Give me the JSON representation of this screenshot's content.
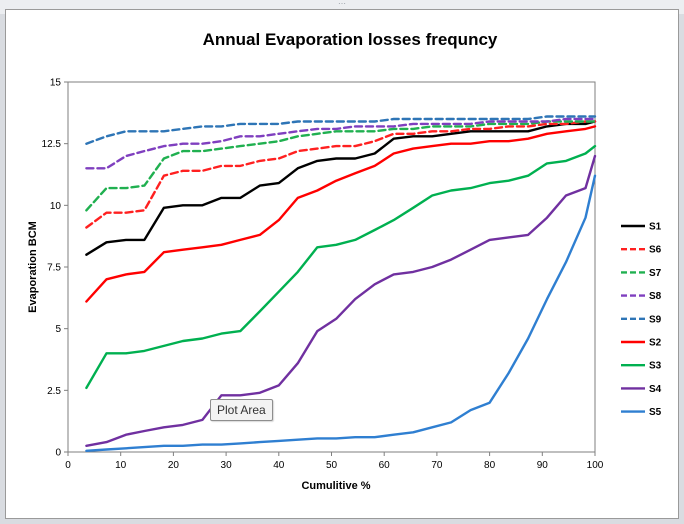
{
  "chart_data": {
    "type": "line",
    "title": "Annual Evaporation losses frequncy",
    "xlabel": "Cumulitive %",
    "ylabel": "Evaporation  BCM",
    "xlim": [
      0,
      100
    ],
    "ylim": [
      0,
      15
    ],
    "x_ticks": [
      "0",
      "10",
      "20",
      "30",
      "40",
      "50",
      "60",
      "70",
      "80",
      "90",
      "100"
    ],
    "y_ticks": [
      "0",
      "2.5",
      "5",
      "7.5",
      "10",
      "12.5",
      "15"
    ],
    "grid": false,
    "legend_position": "right",
    "series": [
      {
        "name": "S1",
        "color": "#000000",
        "dash": false,
        "x": [
          3.5,
          7.3,
          11,
          14.5,
          18.2,
          21.8,
          25.5,
          29.1,
          32.7,
          36.4,
          40,
          43.6,
          47.3,
          50.9,
          54.5,
          58.2,
          61.8,
          65.5,
          69.1,
          72.7,
          76.4,
          80,
          83.6,
          87.3,
          90.9,
          94.5,
          98.2,
          100
        ],
        "y": [
          8.0,
          8.5,
          8.6,
          8.6,
          9.9,
          10.0,
          10.0,
          10.3,
          10.3,
          10.8,
          10.9,
          11.5,
          11.8,
          11.9,
          11.9,
          12.1,
          12.7,
          12.8,
          12.8,
          12.9,
          13.0,
          13.0,
          13.0,
          13.0,
          13.2,
          13.3,
          13.3,
          13.4
        ]
      },
      {
        "name": "S6",
        "color": "#ff2020",
        "dash": true,
        "x": [
          3.5,
          7.3,
          11,
          14.5,
          18.2,
          21.8,
          25.5,
          29.1,
          32.7,
          36.4,
          40,
          43.6,
          47.3,
          50.9,
          54.5,
          58.2,
          61.8,
          65.5,
          69.1,
          72.7,
          76.4,
          80,
          83.6,
          87.3,
          90.9,
          94.5,
          98.2,
          100
        ],
        "y": [
          9.1,
          9.7,
          9.7,
          9.8,
          11.2,
          11.4,
          11.4,
          11.6,
          11.6,
          11.8,
          11.9,
          12.2,
          12.3,
          12.4,
          12.4,
          12.6,
          12.9,
          12.9,
          13.0,
          13.0,
          13.1,
          13.1,
          13.2,
          13.2,
          13.3,
          13.3,
          13.4,
          13.4
        ]
      },
      {
        "name": "S7",
        "color": "#20b050",
        "dash": true,
        "x": [
          3.5,
          7.3,
          11,
          14.5,
          18.2,
          21.8,
          25.5,
          29.1,
          32.7,
          36.4,
          40,
          43.6,
          47.3,
          50.9,
          54.5,
          58.2,
          61.8,
          65.5,
          69.1,
          72.7,
          76.4,
          80,
          83.6,
          87.3,
          90.9,
          94.5,
          98.2,
          100
        ],
        "y": [
          9.8,
          10.7,
          10.7,
          10.8,
          11.9,
          12.2,
          12.2,
          12.3,
          12.4,
          12.5,
          12.6,
          12.8,
          12.9,
          13.0,
          13.0,
          13.0,
          13.1,
          13.1,
          13.2,
          13.2,
          13.2,
          13.3,
          13.3,
          13.3,
          13.4,
          13.4,
          13.4,
          13.4
        ]
      },
      {
        "name": "S8",
        "color": "#7f3fbf",
        "dash": true,
        "x": [
          3.5,
          7.3,
          11,
          14.5,
          18.2,
          21.8,
          25.5,
          29.1,
          32.7,
          36.4,
          40,
          43.6,
          47.3,
          50.9,
          54.5,
          58.2,
          61.8,
          65.5,
          69.1,
          72.7,
          76.4,
          80,
          83.6,
          87.3,
          90.9,
          94.5,
          98.2,
          100
        ],
        "y": [
          11.5,
          11.5,
          12.0,
          12.2,
          12.4,
          12.5,
          12.5,
          12.6,
          12.8,
          12.8,
          12.9,
          13.0,
          13.1,
          13.1,
          13.2,
          13.2,
          13.2,
          13.3,
          13.3,
          13.3,
          13.3,
          13.4,
          13.4,
          13.4,
          13.4,
          13.5,
          13.5,
          13.5
        ]
      },
      {
        "name": "S9",
        "color": "#2e75b6",
        "dash": true,
        "x": [
          3.5,
          7.3,
          11,
          14.5,
          18.2,
          21.8,
          25.5,
          29.1,
          32.7,
          36.4,
          40,
          43.6,
          47.3,
          50.9,
          54.5,
          58.2,
          61.8,
          65.5,
          69.1,
          72.7,
          76.4,
          80,
          83.6,
          87.3,
          90.9,
          94.5,
          98.2,
          100
        ],
        "y": [
          12.5,
          12.8,
          13.0,
          13.0,
          13.0,
          13.1,
          13.2,
          13.2,
          13.3,
          13.3,
          13.3,
          13.4,
          13.4,
          13.4,
          13.4,
          13.4,
          13.5,
          13.5,
          13.5,
          13.5,
          13.5,
          13.5,
          13.5,
          13.5,
          13.6,
          13.6,
          13.6,
          13.6
        ]
      },
      {
        "name": "S2",
        "color": "#ff0000",
        "dash": false,
        "x": [
          3.5,
          7.3,
          11,
          14.5,
          18.2,
          21.8,
          25.5,
          29.1,
          32.7,
          36.4,
          40,
          43.6,
          47.3,
          50.9,
          54.5,
          58.2,
          61.8,
          65.5,
          69.1,
          72.7,
          76.4,
          80,
          83.6,
          87.3,
          90.9,
          94.5,
          98.2,
          100
        ],
        "y": [
          6.1,
          7.0,
          7.2,
          7.3,
          8.1,
          8.2,
          8.3,
          8.4,
          8.6,
          8.8,
          9.4,
          10.3,
          10.6,
          11.0,
          11.3,
          11.6,
          12.1,
          12.3,
          12.4,
          12.5,
          12.5,
          12.6,
          12.6,
          12.7,
          12.9,
          13.0,
          13.1,
          13.2
        ]
      },
      {
        "name": "S3",
        "color": "#00b050",
        "dash": false,
        "x": [
          3.5,
          7.3,
          11,
          14.5,
          18.2,
          21.8,
          25.5,
          29.1,
          32.7,
          36.4,
          40,
          43.6,
          47.3,
          50.9,
          54.5,
          58.2,
          61.8,
          65.5,
          69.1,
          72.7,
          76.4,
          80,
          83.6,
          87.3,
          90.9,
          94.5,
          98.2,
          100
        ],
        "y": [
          2.6,
          4.0,
          4.0,
          4.1,
          4.3,
          4.5,
          4.6,
          4.8,
          4.9,
          5.7,
          6.5,
          7.3,
          8.3,
          8.4,
          8.6,
          9.0,
          9.4,
          9.9,
          10.4,
          10.6,
          10.7,
          10.9,
          11.0,
          11.2,
          11.7,
          11.8,
          12.1,
          12.4
        ]
      },
      {
        "name": "S4",
        "color": "#7030a0",
        "dash": false,
        "x": [
          3.5,
          7.3,
          11,
          14.5,
          18.2,
          21.8,
          25.5,
          29.1,
          32.7,
          36.4,
          40,
          43.6,
          47.3,
          50.9,
          54.5,
          58.2,
          61.8,
          65.5,
          69.1,
          72.7,
          76.4,
          80,
          83.6,
          87.3,
          90.9,
          94.5,
          98.2,
          100
        ],
        "y": [
          0.25,
          0.4,
          0.7,
          0.85,
          1.0,
          1.1,
          1.3,
          2.3,
          2.3,
          2.4,
          2.7,
          3.6,
          4.9,
          5.4,
          6.2,
          6.8,
          7.2,
          7.3,
          7.5,
          7.8,
          8.2,
          8.6,
          8.7,
          8.8,
          9.5,
          10.4,
          10.7,
          12.0
        ]
      },
      {
        "name": "S5",
        "color": "#2f7fd1",
        "dash": false,
        "x": [
          3.5,
          7.3,
          11,
          14.5,
          18.2,
          21.8,
          25.5,
          29.1,
          32.7,
          36.4,
          40,
          43.6,
          47.3,
          50.9,
          54.5,
          58.2,
          61.8,
          65.5,
          69.1,
          72.7,
          76.4,
          80,
          83.6,
          87.3,
          90.9,
          94.5,
          98.2,
          100
        ],
        "y": [
          0.05,
          0.1,
          0.15,
          0.2,
          0.25,
          0.25,
          0.3,
          0.3,
          0.35,
          0.4,
          0.45,
          0.5,
          0.55,
          0.55,
          0.6,
          0.6,
          0.7,
          0.8,
          1.0,
          1.2,
          1.7,
          2.0,
          3.2,
          4.6,
          6.2,
          7.7,
          9.5,
          11.2
        ]
      }
    ]
  },
  "tooltip": {
    "text": "Plot Area"
  }
}
